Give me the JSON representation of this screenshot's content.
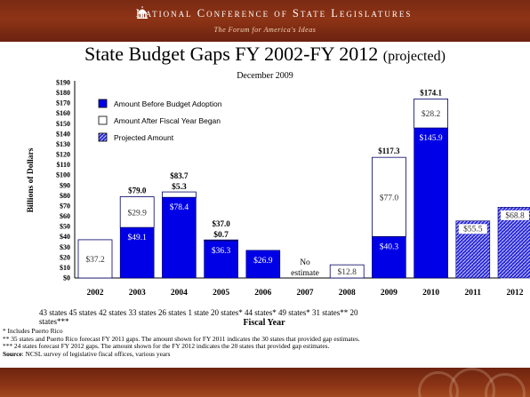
{
  "header": {
    "org_name": "National Conference of State Legislatures",
    "tagline": "The Forum for America's Ideas"
  },
  "title": "State Budget Gaps FY 2002-FY 2012",
  "title_suffix": "(projected)",
  "date": "December 2009",
  "chart_data": {
    "type": "bar",
    "ylabel": "Billions of Dollars",
    "xlabel": "Fiscal Year",
    "ylim": [
      0,
      190
    ],
    "yticks": [
      "$0",
      "$10",
      "$20",
      "$30",
      "$40",
      "$50",
      "$60",
      "$70",
      "$80",
      "$90",
      "$100",
      "$110",
      "$120",
      "$130",
      "$140",
      "$150",
      "$160",
      "$170",
      "$180",
      "$190"
    ],
    "grid": false,
    "legend_position": "top-left",
    "legend": [
      {
        "key": "before",
        "label": "Amount Before Budget Adoption"
      },
      {
        "key": "after",
        "label": "Amount After Fiscal Year Began"
      },
      {
        "key": "projected",
        "label": "Projected Amount"
      }
    ],
    "colors": {
      "before": "#0000e6",
      "after": "#ffffff",
      "projected": "#2323d8"
    },
    "categories": [
      "2002",
      "2003",
      "2004",
      "2005",
      "2006",
      "2007",
      "2008",
      "2009",
      "2010",
      "2011",
      "2012"
    ],
    "series": [
      {
        "name": "Amount Before Budget Adoption",
        "values": [
          0,
          49.1,
          78.4,
          36.3,
          26.9,
          0,
          0,
          40.3,
          145.9,
          0,
          0
        ]
      },
      {
        "name": "Amount After Fiscal Year Began",
        "values": [
          37.2,
          29.9,
          5.3,
          0.7,
          0,
          0,
          12.8,
          77.0,
          28.2,
          0,
          0
        ]
      },
      {
        "name": "Projected Amount",
        "values": [
          0,
          0,
          0,
          0,
          0,
          0,
          0,
          0,
          0,
          55.5,
          68.8
        ]
      }
    ],
    "before_labels": [
      "",
      "$49.1",
      "$78.4",
      "$36.3",
      "$26.9",
      "",
      "",
      "$40.3",
      "$145.9",
      "",
      ""
    ],
    "after_labels": [
      "$37.2",
      "$29.9",
      "$5.3",
      "$0.7",
      "",
      "",
      "$12.8",
      "$77.0",
      "$28.2",
      "",
      ""
    ],
    "projected_labels": [
      "",
      "",
      "",
      "",
      "",
      "",
      "",
      "",
      "",
      "$55.5",
      "$68.8"
    ],
    "total_labels": [
      "",
      "$79.0",
      "$83.7",
      "$37.0",
      "",
      "",
      "",
      "$117.3",
      "$174.1",
      "",
      ""
    ],
    "annotations": [
      {
        "category": "2007",
        "text": "No estimate"
      }
    ],
    "state_counts": [
      "43 states",
      "45 states",
      "42 states",
      "33 states",
      "26 states",
      "1 state",
      "20 states*",
      "44 states*",
      "49 states*",
      "31 states**",
      "20 states***"
    ]
  },
  "notes": {
    "n1": "* Includes Puerto Rico",
    "n2": "** 35 states and Puerto Rico forecast FY 2011 gaps.  The amount shown for FY 2011 indicates the 30 states that provided gap estimates.",
    "n3": "*** 24 states forecast FY 2012 gaps.  The amount shown for the FY 2012 indicates the 20 states that provided gap estimates.",
    "source_label": "Source",
    "source_text": ": NCSL survey of legislative fiscal offices, various years"
  }
}
